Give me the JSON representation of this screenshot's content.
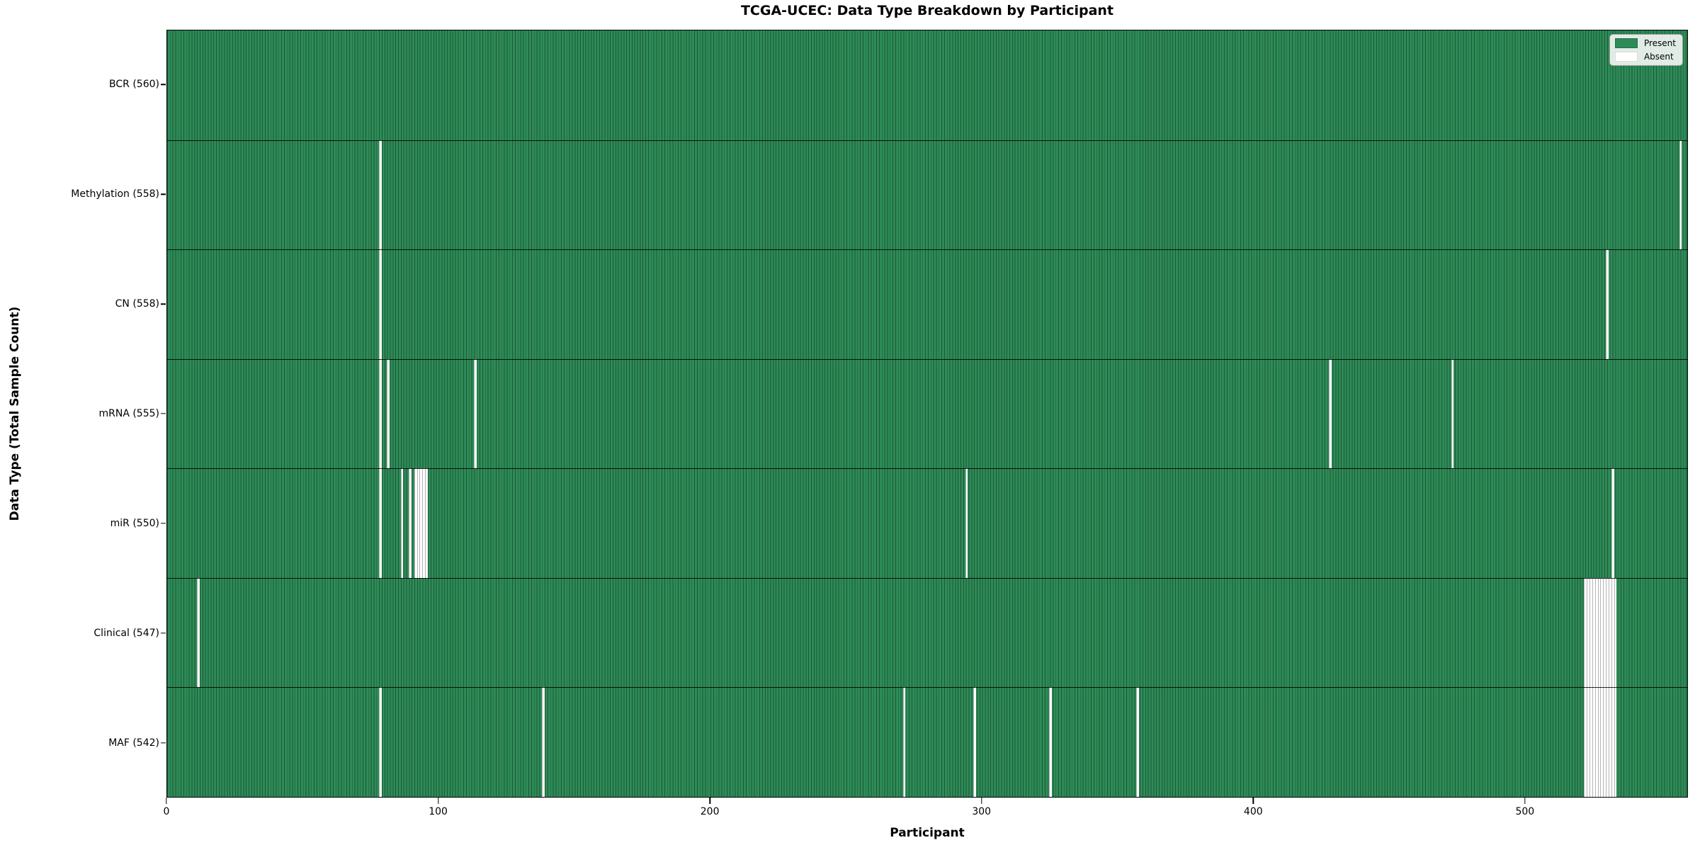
{
  "title": "TCGA-UCEC: Data Type Breakdown by Participant",
  "xlabel": "Participant",
  "ylabel": "Data Type (Total Sample Count)",
  "legend": {
    "present": "Present",
    "absent": "Absent"
  },
  "chart_data": {
    "type": "heatmap",
    "title": "TCGA-UCEC: Data Type Breakdown by Participant",
    "xlabel": "Participant",
    "ylabel": "Data Type (Total Sample Count)",
    "x_range": [
      0,
      560
    ],
    "x_ticks": [
      0,
      100,
      200,
      300,
      400,
      500
    ],
    "legend_position": "upper right",
    "grid": false,
    "colors": {
      "present": "#2e8b57",
      "absent": "#ffffff",
      "bar_edge": "#0a2618"
    },
    "rows": [
      {
        "label": "BCR (560)",
        "data_type": "BCR",
        "present_count": 560,
        "absent_participants": []
      },
      {
        "label": "Methylation (558)",
        "data_type": "Methylation",
        "present_count": 558,
        "absent_participants": [
          78,
          557
        ]
      },
      {
        "label": "CN (558)",
        "data_type": "CN",
        "present_count": 558,
        "absent_participants": [
          78,
          530
        ]
      },
      {
        "label": "mRNA (555)",
        "data_type": "mRNA",
        "present_count": 555,
        "absent_participants": [
          78,
          81,
          113,
          428,
          473
        ]
      },
      {
        "label": "miR (550)",
        "data_type": "miR",
        "present_count": 550,
        "absent_participants": [
          78,
          86,
          89,
          91,
          92,
          93,
          94,
          95,
          294,
          532
        ]
      },
      {
        "label": "Clinical (547)",
        "data_type": "Clinical",
        "present_count": 547,
        "absent_participants": [
          11,
          522,
          523,
          524,
          525,
          526,
          527,
          528,
          529,
          530,
          531,
          532,
          533
        ]
      },
      {
        "label": "MAF (542)",
        "data_type": "MAF",
        "present_count": 542,
        "absent_participants": [
          78,
          138,
          271,
          297,
          325,
          357,
          522,
          523,
          524,
          525,
          526,
          527,
          528,
          529,
          530,
          531,
          532,
          533
        ]
      }
    ]
  }
}
